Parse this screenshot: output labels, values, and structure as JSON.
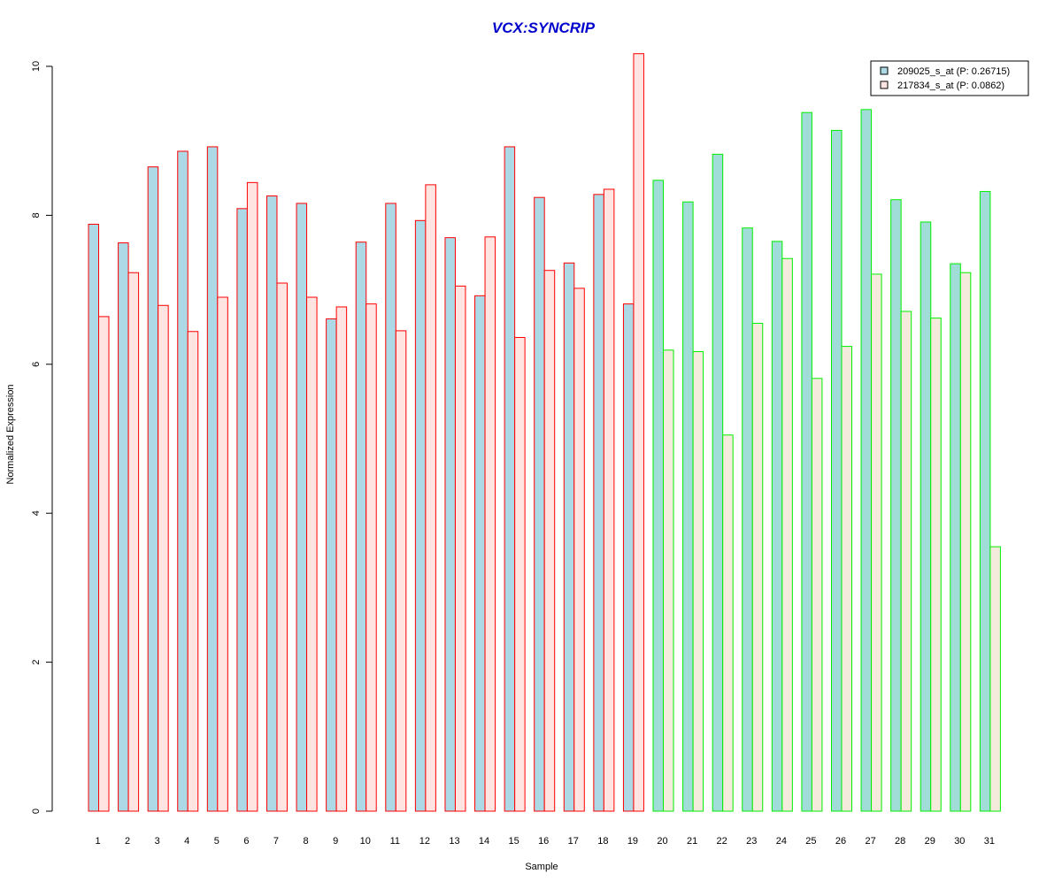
{
  "chart_data": {
    "type": "bar",
    "title": "VCX:SYNCRIP",
    "xlabel": "Sample",
    "ylabel": "Normalized Expression",
    "ylim": [
      0,
      10
    ],
    "yticks": [
      0,
      2,
      4,
      6,
      8,
      10
    ],
    "categories": [
      "1",
      "2",
      "3",
      "4",
      "5",
      "6",
      "7",
      "8",
      "9",
      "10",
      "11",
      "12",
      "13",
      "14",
      "15",
      "16",
      "17",
      "18",
      "19",
      "20",
      "21",
      "22",
      "23",
      "24",
      "25",
      "26",
      "27",
      "28",
      "29",
      "30",
      "31"
    ],
    "group_of_category": [
      "red",
      "red",
      "red",
      "red",
      "red",
      "red",
      "red",
      "red",
      "red",
      "red",
      "red",
      "red",
      "red",
      "red",
      "red",
      "red",
      "red",
      "red",
      "red",
      "green",
      "green",
      "green",
      "green",
      "green",
      "green",
      "green",
      "green",
      "green",
      "green",
      "green",
      "green"
    ],
    "series": [
      {
        "name": "209025_s_at (P: 0.26715)",
        "values": [
          7.88,
          7.63,
          8.65,
          8.86,
          8.92,
          8.09,
          8.26,
          8.16,
          6.61,
          7.64,
          8.16,
          7.93,
          7.7,
          6.92,
          8.92,
          8.24,
          7.36,
          8.28,
          6.81,
          8.47,
          8.18,
          8.82,
          7.83,
          7.65,
          9.38,
          9.14,
          9.42,
          8.21,
          7.91,
          7.35,
          8.32
        ]
      },
      {
        "name": "217834_s_at (P: 0.0862)",
        "values": [
          6.64,
          7.23,
          6.79,
          6.44,
          6.9,
          8.44,
          7.09,
          6.9,
          6.77,
          6.81,
          6.45,
          8.41,
          7.05,
          7.71,
          6.36,
          7.26,
          7.02,
          8.35,
          10.17,
          6.19,
          6.17,
          5.05,
          6.55,
          7.42,
          5.81,
          6.24,
          7.21,
          6.71,
          6.62,
          7.23,
          3.55
        ]
      }
    ],
    "legend_position": "top-right",
    "grid": false
  },
  "colors": {
    "title": "#0000cc",
    "series1_fill_red_group": "#add8e6",
    "series2_fill_red_group": "#ffe4e1",
    "series1_fill_green_group": "#a0dcd8",
    "series2_fill_green_group": "#f5ebdc",
    "border_red_group": "#ff0000",
    "border_green_group": "#00ee00",
    "axis": "#000000"
  }
}
